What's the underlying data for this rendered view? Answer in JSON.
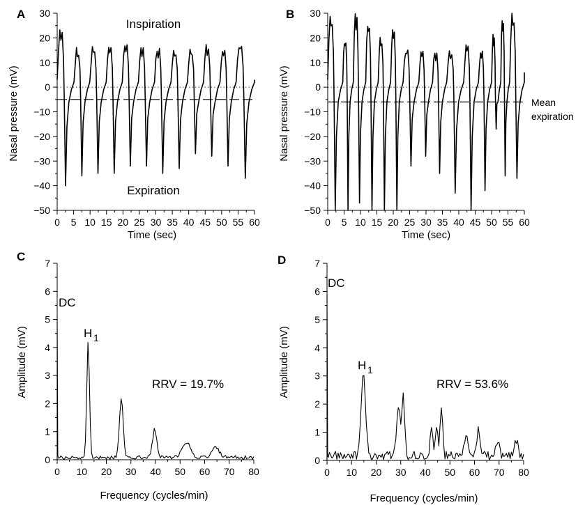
{
  "chart_data": [
    {
      "panel": "A",
      "type": "line",
      "xlabel": "Time (sec)",
      "ylabel": "Nasal pressure (mV)",
      "xlim": [
        0,
        60
      ],
      "ylim": [
        -50,
        30
      ],
      "xticks": [
        0,
        5,
        10,
        15,
        20,
        25,
        30,
        35,
        40,
        45,
        50,
        55,
        60
      ],
      "yticks": [
        30,
        20,
        10,
        0,
        -10,
        -20,
        -30,
        -40,
        -50
      ],
      "annotations": [
        "Inspiration",
        "Expiration"
      ],
      "reference_lines": [
        {
          "style": "dotted",
          "y": 0
        },
        {
          "style": "dashed",
          "y": -5
        }
      ],
      "breaths": [
        {
          "t": 0.0,
          "peak": 22,
          "trough": -40
        },
        {
          "t": 5.1,
          "peak": 15,
          "trough": -36
        },
        {
          "t": 9.9,
          "peak": 15,
          "trough": -35
        },
        {
          "t": 14.9,
          "peak": 16,
          "trough": -35
        },
        {
          "t": 19.8,
          "peak": 17,
          "trough": -32
        },
        {
          "t": 24.7,
          "peak": 16,
          "trough": -32
        },
        {
          "t": 29.6,
          "peak": 15,
          "trough": -35
        },
        {
          "t": 34.6,
          "peak": 15,
          "trough": -33
        },
        {
          "t": 39.6,
          "peak": 15,
          "trough": -27
        },
        {
          "t": 44.5,
          "peak": 16,
          "trough": -28
        },
        {
          "t": 49.5,
          "peak": 15,
          "trough": -32
        },
        {
          "t": 54.4,
          "peak": 17,
          "trough": -37
        }
      ],
      "end_value": 3
    },
    {
      "panel": "B",
      "type": "line",
      "xlabel": "Time (sec)",
      "ylabel": "Nasal pressure (mV)",
      "xlim": [
        0,
        60
      ],
      "ylim": [
        -50,
        30
      ],
      "xticks": [
        0,
        5,
        10,
        15,
        20,
        25,
        30,
        35,
        40,
        45,
        50,
        55,
        60
      ],
      "yticks": [
        30,
        20,
        10,
        0,
        -10,
        -20,
        -30,
        -40,
        -50
      ],
      "annotations": [
        "Mean",
        "expiration"
      ],
      "reference_lines": [
        {
          "style": "dotted",
          "y": 0
        },
        {
          "style": "dashed",
          "y": -6
        }
      ],
      "breaths": [
        {
          "t": 0.0,
          "peak": 28,
          "trough": -50
        },
        {
          "t": 4.6,
          "peak": 19,
          "trough": -50
        },
        {
          "t": 7.8,
          "peak": 29,
          "trough": -47
        },
        {
          "t": 11.6,
          "peak": 26,
          "trough": -50
        },
        {
          "t": 15.4,
          "peak": 19,
          "trough": -50
        },
        {
          "t": 19.2,
          "peak": 22,
          "trough": -50
        },
        {
          "t": 23.0,
          "peak": 15,
          "trough": -32
        },
        {
          "t": 27.8,
          "peak": 14,
          "trough": -28
        },
        {
          "t": 32.0,
          "peak": 14,
          "trough": -35
        },
        {
          "t": 36.3,
          "peak": 15,
          "trough": -43
        },
        {
          "t": 41.5,
          "peak": 16,
          "trough": -50
        },
        {
          "t": 46.0,
          "peak": 15,
          "trough": -42
        },
        {
          "t": 50.0,
          "peak": 20,
          "trough": -17
        },
        {
          "t": 52.8,
          "peak": 28,
          "trough": -36
        },
        {
          "t": 55.5,
          "peak": 29,
          "trough": -37
        }
      ],
      "end_value": 6
    },
    {
      "panel": "C",
      "type": "line",
      "xlabel": "Frequency (cycles/min)",
      "ylabel": "Amplitude (mV)",
      "xlim": [
        0,
        80
      ],
      "ylim": [
        0,
        7
      ],
      "xticks": [
        0,
        10,
        20,
        30,
        40,
        50,
        60,
        70,
        80
      ],
      "yticks": [
        7,
        6,
        5,
        4,
        3,
        2,
        1,
        0
      ],
      "annotations": [
        "DC",
        "H",
        "1",
        "RRV = 19.7%"
      ],
      "dc_amplitude": 5.1,
      "noise_level": 0.13,
      "peaks": [
        {
          "x": 12.6,
          "y": 4.15,
          "w": 0.55
        },
        {
          "x": 26.1,
          "y": 2.1,
          "w": 0.75
        },
        {
          "x": 39.7,
          "y": 1.0,
          "w": 0.9
        },
        {
          "x": 52.5,
          "y": 0.55,
          "w": 1.6
        },
        {
          "x": 64.5,
          "y": 0.35,
          "w": 1.5
        }
      ]
    },
    {
      "panel": "D",
      "type": "line",
      "xlabel": "Frequency (cycles/min)",
      "ylabel": "Amplitude (mV)",
      "xlim": [
        0,
        80
      ],
      "ylim": [
        0,
        7
      ],
      "xticks": [
        0,
        10,
        20,
        30,
        40,
        50,
        60,
        70,
        80
      ],
      "yticks": [
        7,
        6,
        5,
        4,
        3,
        2,
        1,
        0
      ],
      "annotations": [
        "DC",
        "H",
        "1",
        "RRV = 53.6%"
      ],
      "dc_amplitude": 5.9,
      "noise_level": 0.3,
      "peaks": [
        {
          "x": 14.8,
          "y": 2.85,
          "w": 0.9
        },
        {
          "x": 29.0,
          "y": 1.8,
          "w": 0.7
        },
        {
          "x": 31.0,
          "y": 2.15,
          "w": 0.6
        },
        {
          "x": 42.5,
          "y": 1.0,
          "w": 0.5
        },
        {
          "x": 44.5,
          "y": 1.1,
          "w": 0.5
        },
        {
          "x": 46.5,
          "y": 1.75,
          "w": 0.5
        },
        {
          "x": 56.5,
          "y": 0.8,
          "w": 0.6
        },
        {
          "x": 61.5,
          "y": 0.9,
          "w": 0.6
        },
        {
          "x": 69.5,
          "y": 0.55,
          "w": 0.7
        },
        {
          "x": 77.0,
          "y": 0.5,
          "w": 0.8
        }
      ]
    }
  ]
}
